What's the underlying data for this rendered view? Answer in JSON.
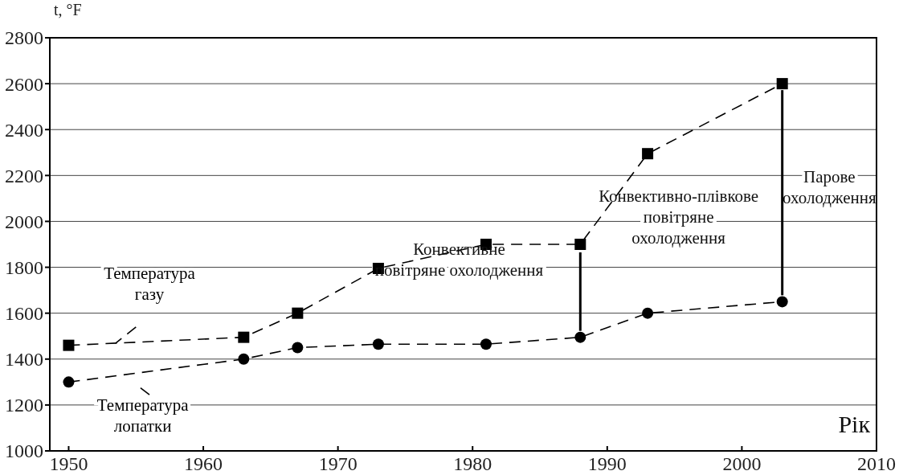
{
  "chart_data": {
    "type": "line",
    "xlabel": "Рік",
    "ylabel": "t, °F",
    "xlim": [
      1948.6,
      2010
    ],
    "xticks": [
      1950,
      1960,
      1970,
      1980,
      1990,
      2000,
      2010
    ],
    "ylim": [
      1000,
      2800
    ],
    "yticks": [
      1000,
      1200,
      1400,
      1600,
      1800,
      2000,
      2200,
      2400,
      2600,
      2800
    ],
    "grid": "y",
    "line_style": "dashed",
    "series": [
      {
        "name": "Температура газу",
        "color": "#000000",
        "marker": "square",
        "x": [
          1950,
          1963,
          1967,
          1973,
          1981,
          1988,
          1993,
          2003
        ],
        "values": [
          1460,
          1495,
          1600,
          1795,
          1900,
          1900,
          2295,
          2600
        ]
      },
      {
        "name": "Температура лопатки",
        "color": "#000000",
        "marker": "circle",
        "x": [
          1950,
          1963,
          1967,
          1973,
          1981,
          1988,
          1993,
          2003
        ],
        "values": [
          1300,
          1400,
          1450,
          1465,
          1465,
          1495,
          1600,
          1650
        ]
      }
    ],
    "annotations": [
      "Конвективне повітряне охолодження",
      "Конвективно-плівкове повітряне охолодження",
      "Парове охолодження"
    ]
  }
}
